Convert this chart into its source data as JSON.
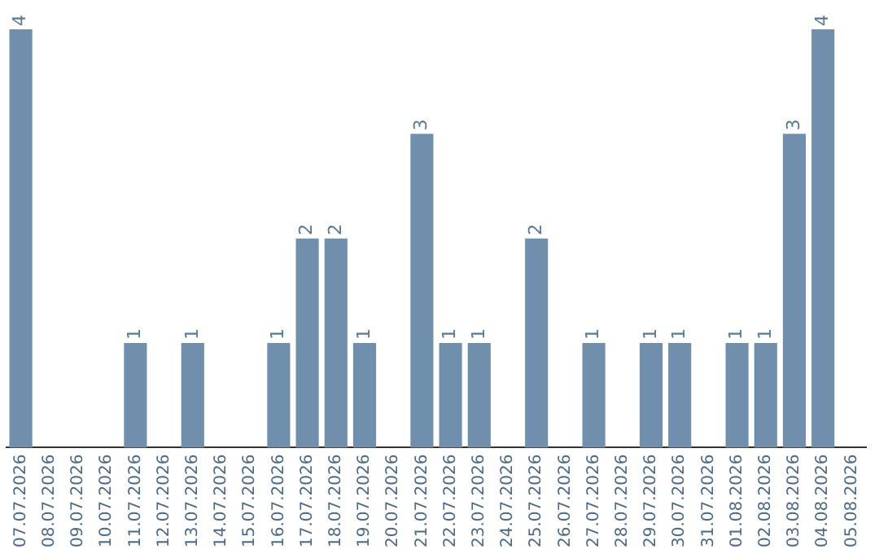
{
  "chart_data": {
    "type": "bar",
    "categories": [
      "07.07.2026",
      "08.07.2026",
      "09.07.2026",
      "10.07.2026",
      "11.07.2026",
      "12.07.2026",
      "13.07.2026",
      "14.07.2026",
      "15.07.2026",
      "16.07.2026",
      "17.07.2026",
      "18.07.2026",
      "19.07.2026",
      "20.07.2026",
      "21.07.2026",
      "22.07.2026",
      "23.07.2026",
      "24.07.2026",
      "25.07.2026",
      "26.07.2026",
      "27.07.2026",
      "28.07.2026",
      "29.07.2026",
      "30.07.2026",
      "31.07.2026",
      "01.08.2026",
      "02.08.2026",
      "03.08.2026",
      "04.08.2026",
      "05.08.2026"
    ],
    "values": [
      4,
      0,
      0,
      0,
      1,
      0,
      1,
      0,
      0,
      1,
      2,
      2,
      1,
      0,
      3,
      1,
      1,
      0,
      2,
      0,
      1,
      0,
      1,
      1,
      0,
      1,
      1,
      3,
      4,
      0
    ],
    "value_labels": [
      "4",
      null,
      null,
      null,
      "1",
      null,
      "1",
      null,
      null,
      "1",
      "2",
      "2",
      "1",
      null,
      "3",
      "1",
      "1",
      null,
      "2",
      null,
      "1",
      null,
      "1",
      "1",
      null,
      "1",
      "1",
      "3",
      "4",
      null
    ],
    "color": "#6f8fad",
    "tick_labels": "x",
    "grid": false,
    "legend": false
  }
}
